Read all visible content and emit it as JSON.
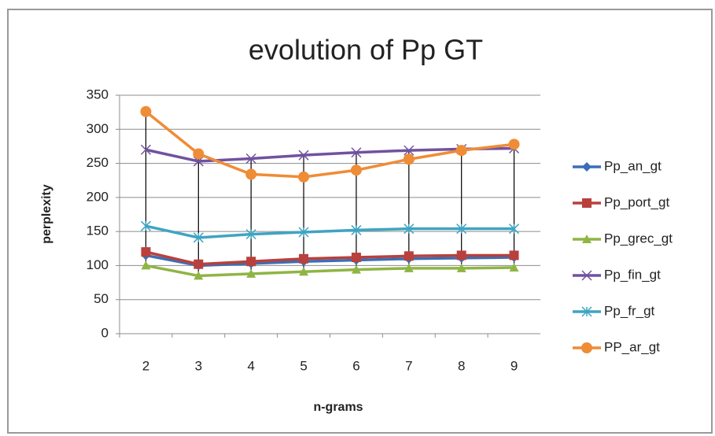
{
  "chart_data": {
    "type": "line",
    "title": "evolution of Pp GT",
    "x_label": "n-grams",
    "y_label": "perplexity",
    "categories": [
      "2",
      "3",
      "4",
      "5",
      "6",
      "7",
      "8",
      "9"
    ],
    "series": [
      {
        "name": "Pp_an_gt",
        "color": "#3a6fb5",
        "marker": "diamond",
        "values": [
          115,
          100,
          103,
          106,
          108,
          110,
          111,
          112
        ]
      },
      {
        "name": "Pp_port_gt",
        "color": "#b9403c",
        "marker": "square",
        "values": [
          120,
          102,
          106,
          110,
          112,
          114,
          115,
          115
        ]
      },
      {
        "name": "Pp_grec_gt",
        "color": "#8fb544",
        "marker": "triangle",
        "values": [
          100,
          85,
          88,
          91,
          94,
          96,
          96,
          97
        ]
      },
      {
        "name": "Pp_fin_gt",
        "color": "#7152a0",
        "marker": "x",
        "values": [
          270,
          253,
          257,
          262,
          266,
          269,
          271,
          272
        ]
      },
      {
        "name": "Pp_fr_gt",
        "color": "#3fa4c2",
        "marker": "star",
        "values": [
          158,
          141,
          146,
          149,
          152,
          154,
          154,
          154
        ]
      },
      {
        "name": "PP_ar_gt",
        "color": "#ef8c36",
        "marker": "circle",
        "values": [
          326,
          264,
          234,
          230,
          240,
          256,
          269,
          278
        ]
      }
    ],
    "ylim": [
      0,
      350
    ],
    "yticks": [
      0,
      50,
      100,
      150,
      200,
      250,
      300,
      350
    ],
    "grid": true,
    "high_low_lines": true,
    "legend": "right"
  }
}
